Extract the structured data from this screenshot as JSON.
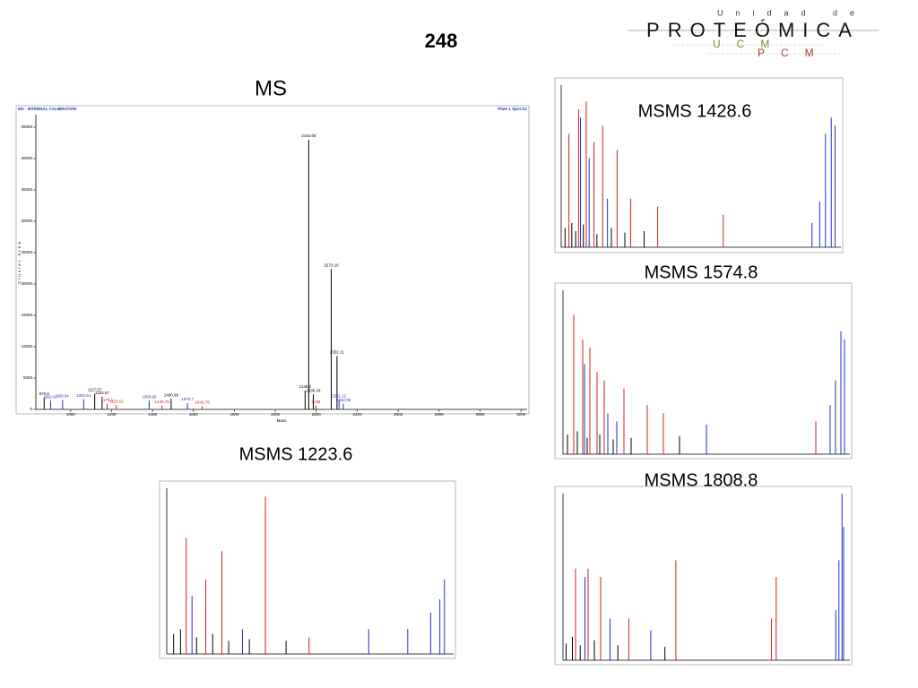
{
  "header": {
    "number": "248"
  },
  "logo": {
    "top": "Unidad de",
    "main": "PROTEÓMICA",
    "sub1": "UCM",
    "sub2": "PCM"
  },
  "chart_data": [
    {
      "type": "spectrum",
      "title": "MS",
      "subtitle": "MS - INTERNAL CALIBRATION",
      "note": "Plate 1 Spot D1",
      "x_label": "Mass",
      "y_label": "Cluster Area",
      "xlim": [
        830,
        3230
      ],
      "xticks": [
        1000,
        1200,
        1400,
        1600,
        1800,
        2000,
        2200,
        2400,
        2600,
        2800,
        3000,
        3200
      ],
      "ylim": [
        0,
        47000
      ],
      "yticks": [
        0,
        5000,
        10000,
        15000,
        20000,
        25000,
        30000,
        35000,
        40000,
        45000
      ],
      "series": [
        {
          "color": "#000000",
          "x": [
            870.5,
            1117.57,
            1153.57,
            1490.88,
            2145.2,
            2163.08,
            2185.34,
            2273.16,
            2301.11
          ],
          "values": [
            1900,
            2500,
            2000,
            1700,
            3000,
            43000,
            2400,
            22400,
            8500
          ]
        },
        {
          "color": "#1f2fd0",
          "x": [
            902.02,
            960.64,
            1063.51,
            1383.66,
            1570.7,
            2311.12,
            2332.06
          ],
          "values": [
            1400,
            1500,
            1600,
            1400,
            1000,
            1500,
            900
          ]
        },
        {
          "color": "#d02020",
          "x": [
            1178.1,
            1223.61,
            1445.76,
            1642.79,
            2198.0
          ],
          "values": [
            900,
            700,
            600,
            500,
            600
          ]
        }
      ]
    },
    {
      "type": "spectrum",
      "title": "MSMS 1428.6",
      "xlim": [
        0,
        1450
      ],
      "ylim": [
        0,
        100
      ],
      "series": [
        {
          "color": "#d02020",
          "x": [
            40,
            90,
            130,
            170,
            215,
            290,
            360,
            500,
            840
          ],
          "values": [
            70,
            85,
            90,
            65,
            75,
            60,
            30,
            25,
            20
          ]
        },
        {
          "color": "#1f2fd0",
          "x": [
            100,
            145,
            240,
            1300,
            1340,
            1370,
            1400,
            1420
          ],
          "values": [
            80,
            55,
            30,
            15,
            28,
            70,
            80,
            75
          ]
        },
        {
          "color": "#000000",
          "x": [
            20,
            55,
            75,
            115,
            185,
            260,
            330,
            430
          ],
          "values": [
            12,
            15,
            10,
            14,
            8,
            12,
            9,
            10
          ]
        }
      ]
    },
    {
      "type": "spectrum",
      "title": "MSMS 1574.8",
      "xlim": [
        0,
        1600
      ],
      "ylim": [
        0,
        100
      ],
      "series": [
        {
          "color": "#d02020",
          "x": [
            60,
            110,
            150,
            190,
            230,
            340,
            470,
            560,
            1410
          ],
          "values": [
            85,
            70,
            65,
            50,
            45,
            40,
            30,
            25,
            20
          ]
        },
        {
          "color": "#1f2fd0",
          "x": [
            120,
            250,
            300,
            800,
            1490,
            1520,
            1550,
            1570
          ],
          "values": [
            55,
            25,
            20,
            18,
            30,
            45,
            75,
            70
          ]
        },
        {
          "color": "#000000",
          "x": [
            25,
            80,
            135,
            205,
            280,
            380,
            650
          ],
          "values": [
            12,
            14,
            10,
            12,
            9,
            10,
            11
          ]
        }
      ]
    },
    {
      "type": "spectrum",
      "title": "MSMS 1223.6",
      "xlim": [
        0,
        1250
      ],
      "ylim": [
        0,
        100
      ],
      "series": [
        {
          "color": "#d02020",
          "x": [
            85,
            170,
            240,
            430,
            620
          ],
          "values": [
            70,
            45,
            62,
            95,
            10
          ]
        },
        {
          "color": "#1f2fd0",
          "x": [
            110,
            330,
            880,
            1050,
            1150,
            1190,
            1210
          ],
          "values": [
            35,
            15,
            15,
            15,
            25,
            33,
            45
          ]
        },
        {
          "color": "#000000",
          "x": [
            30,
            60,
            130,
            200,
            270,
            360,
            520
          ],
          "values": [
            12,
            15,
            10,
            12,
            8,
            9,
            8
          ]
        }
      ]
    },
    {
      "type": "spectrum",
      "title": "MSMS 1808.8",
      "xlim": [
        0,
        1830
      ],
      "ylim": [
        0,
        100
      ],
      "series": [
        {
          "color": "#d02020",
          "x": [
            80,
            160,
            240,
            420,
            720,
            1360,
            1330
          ],
          "values": [
            55,
            55,
            50,
            25,
            60,
            50,
            25
          ]
        },
        {
          "color": "#1f2fd0",
          "x": [
            140,
            300,
            560,
            1740,
            1760,
            1780,
            1790
          ],
          "values": [
            50,
            25,
            18,
            30,
            60,
            100,
            80
          ]
        },
        {
          "color": "#000000",
          "x": [
            20,
            60,
            110,
            200,
            350,
            650
          ],
          "values": [
            10,
            14,
            9,
            12,
            9,
            8
          ]
        }
      ]
    }
  ]
}
